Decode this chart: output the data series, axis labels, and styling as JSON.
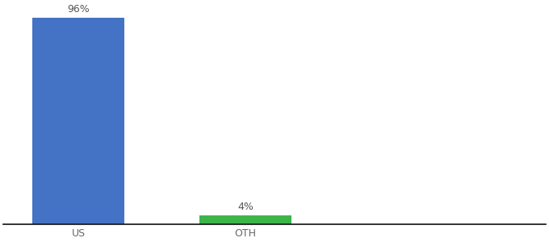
{
  "categories": [
    "US",
    "OTH"
  ],
  "values": [
    96,
    4
  ],
  "bar_colors": [
    "#4472c4",
    "#3cb54a"
  ],
  "labels": [
    "96%",
    "4%"
  ],
  "ylim": [
    0,
    100
  ],
  "background_color": "#ffffff",
  "bar_width": 0.55,
  "label_fontsize": 9,
  "tick_fontsize": 9,
  "tick_color": "#666666",
  "axis_line_color": "#111111",
  "x_positions": [
    0,
    1
  ],
  "xlim": [
    -0.45,
    2.8
  ]
}
